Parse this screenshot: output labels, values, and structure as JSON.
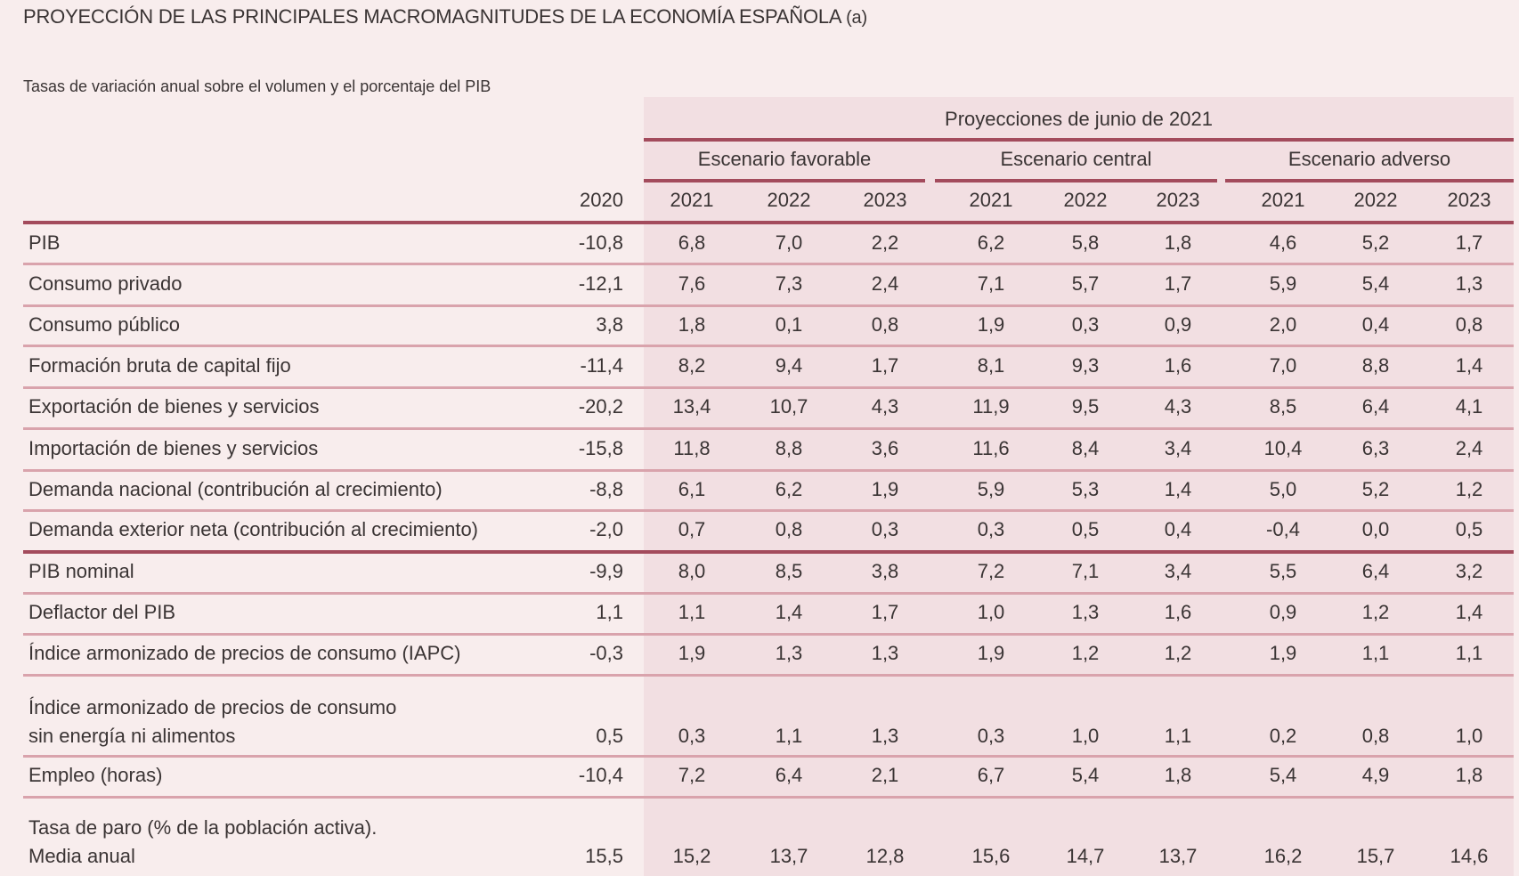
{
  "title": "PROYECCIÓN DE LAS PRINCIPALES MACROMAGNITUDES DE LA ECONOMÍA ESPAÑOLA",
  "title_note": "(a)",
  "subtitle": "Tasas de variación anual sobre el volumen y el porcentaje del PIB",
  "projection_header": "Proyecciones de junio de 2021",
  "scenarios": [
    "Escenario favorable",
    "Escenario central",
    "Escenario adverso"
  ],
  "years": [
    "2020",
    "2021",
    "2022",
    "2023",
    "2021",
    "2022",
    "2023",
    "2021",
    "2022",
    "2023"
  ],
  "accent_color": "#a34b5c",
  "rows": [
    {
      "label": [
        "PIB"
      ],
      "values": [
        "-10,8",
        "6,8",
        "7,0",
        "2,2",
        "6,2",
        "5,8",
        "1,8",
        "4,6",
        "5,2",
        "1,7"
      ]
    },
    {
      "label": [
        "Consumo privado"
      ],
      "values": [
        "-12,1",
        "7,6",
        "7,3",
        "2,4",
        "7,1",
        "5,7",
        "1,7",
        "5,9",
        "5,4",
        "1,3"
      ]
    },
    {
      "label": [
        "Consumo público"
      ],
      "values": [
        "3,8",
        "1,8",
        "0,1",
        "0,8",
        "1,9",
        "0,3",
        "0,9",
        "2,0",
        "0,4",
        "0,8"
      ]
    },
    {
      "label": [
        "Formación bruta de capital fijo"
      ],
      "values": [
        "-11,4",
        "8,2",
        "9,4",
        "1,7",
        "8,1",
        "9,3",
        "1,6",
        "7,0",
        "8,8",
        "1,4"
      ]
    },
    {
      "label": [
        "Exportación de bienes y servicios"
      ],
      "values": [
        "-20,2",
        "13,4",
        "10,7",
        "4,3",
        "11,9",
        "9,5",
        "4,3",
        "8,5",
        "6,4",
        "4,1"
      ]
    },
    {
      "label": [
        "Importación de bienes y servicios"
      ],
      "values": [
        "-15,8",
        "11,8",
        "8,8",
        "3,6",
        "11,6",
        "8,4",
        "3,4",
        "10,4",
        "6,3",
        "2,4"
      ]
    },
    {
      "label": [
        "Demanda nacional (contribución al crecimiento)"
      ],
      "values": [
        "-8,8",
        "6,1",
        "6,2",
        "1,9",
        "5,9",
        "5,3",
        "1,4",
        "5,0",
        "5,2",
        "1,2"
      ]
    },
    {
      "label": [
        "Demanda exterior neta (contribución al crecimiento)"
      ],
      "values": [
        "-2,0",
        "0,7",
        "0,8",
        "0,3",
        "0,3",
        "0,5",
        "0,4",
        "-0,4",
        "0,0",
        "0,5"
      ]
    },
    {
      "label": [
        "PIB nominal"
      ],
      "values": [
        "-9,9",
        "8,0",
        "8,5",
        "3,8",
        "7,2",
        "7,1",
        "3,4",
        "5,5",
        "6,4",
        "3,2"
      ]
    },
    {
      "label": [
        "Deflactor del PIB"
      ],
      "values": [
        "1,1",
        "1,1",
        "1,4",
        "1,7",
        "1,0",
        "1,3",
        "1,6",
        "0,9",
        "1,2",
        "1,4"
      ]
    },
    {
      "label": [
        "Índice armonizado de precios de consumo (IAPC)"
      ],
      "values": [
        "-0,3",
        "1,9",
        "1,3",
        "1,3",
        "1,9",
        "1,2",
        "1,2",
        "1,9",
        "1,1",
        "1,1"
      ]
    },
    {
      "label": [
        "Índice armonizado de precios de consumo",
        "sin energía ni alimentos"
      ],
      "values": [
        "0,5",
        "0,3",
        "1,1",
        "1,3",
        "0,3",
        "1,0",
        "1,1",
        "0,2",
        "0,8",
        "1,0"
      ]
    },
    {
      "label": [
        "Empleo (horas)"
      ],
      "values": [
        "-10,4",
        "7,2",
        "6,4",
        "2,1",
        "6,7",
        "5,4",
        "1,8",
        "5,4",
        "4,9",
        "1,8"
      ]
    },
    {
      "label": [
        "Tasa de paro (% de la población activa).",
        "Media anual"
      ],
      "values": [
        "15,5",
        "15,2",
        "13,7",
        "12,8",
        "15,6",
        "14,7",
        "13,7",
        "16,2",
        "15,7",
        "14,6"
      ]
    }
  ]
}
